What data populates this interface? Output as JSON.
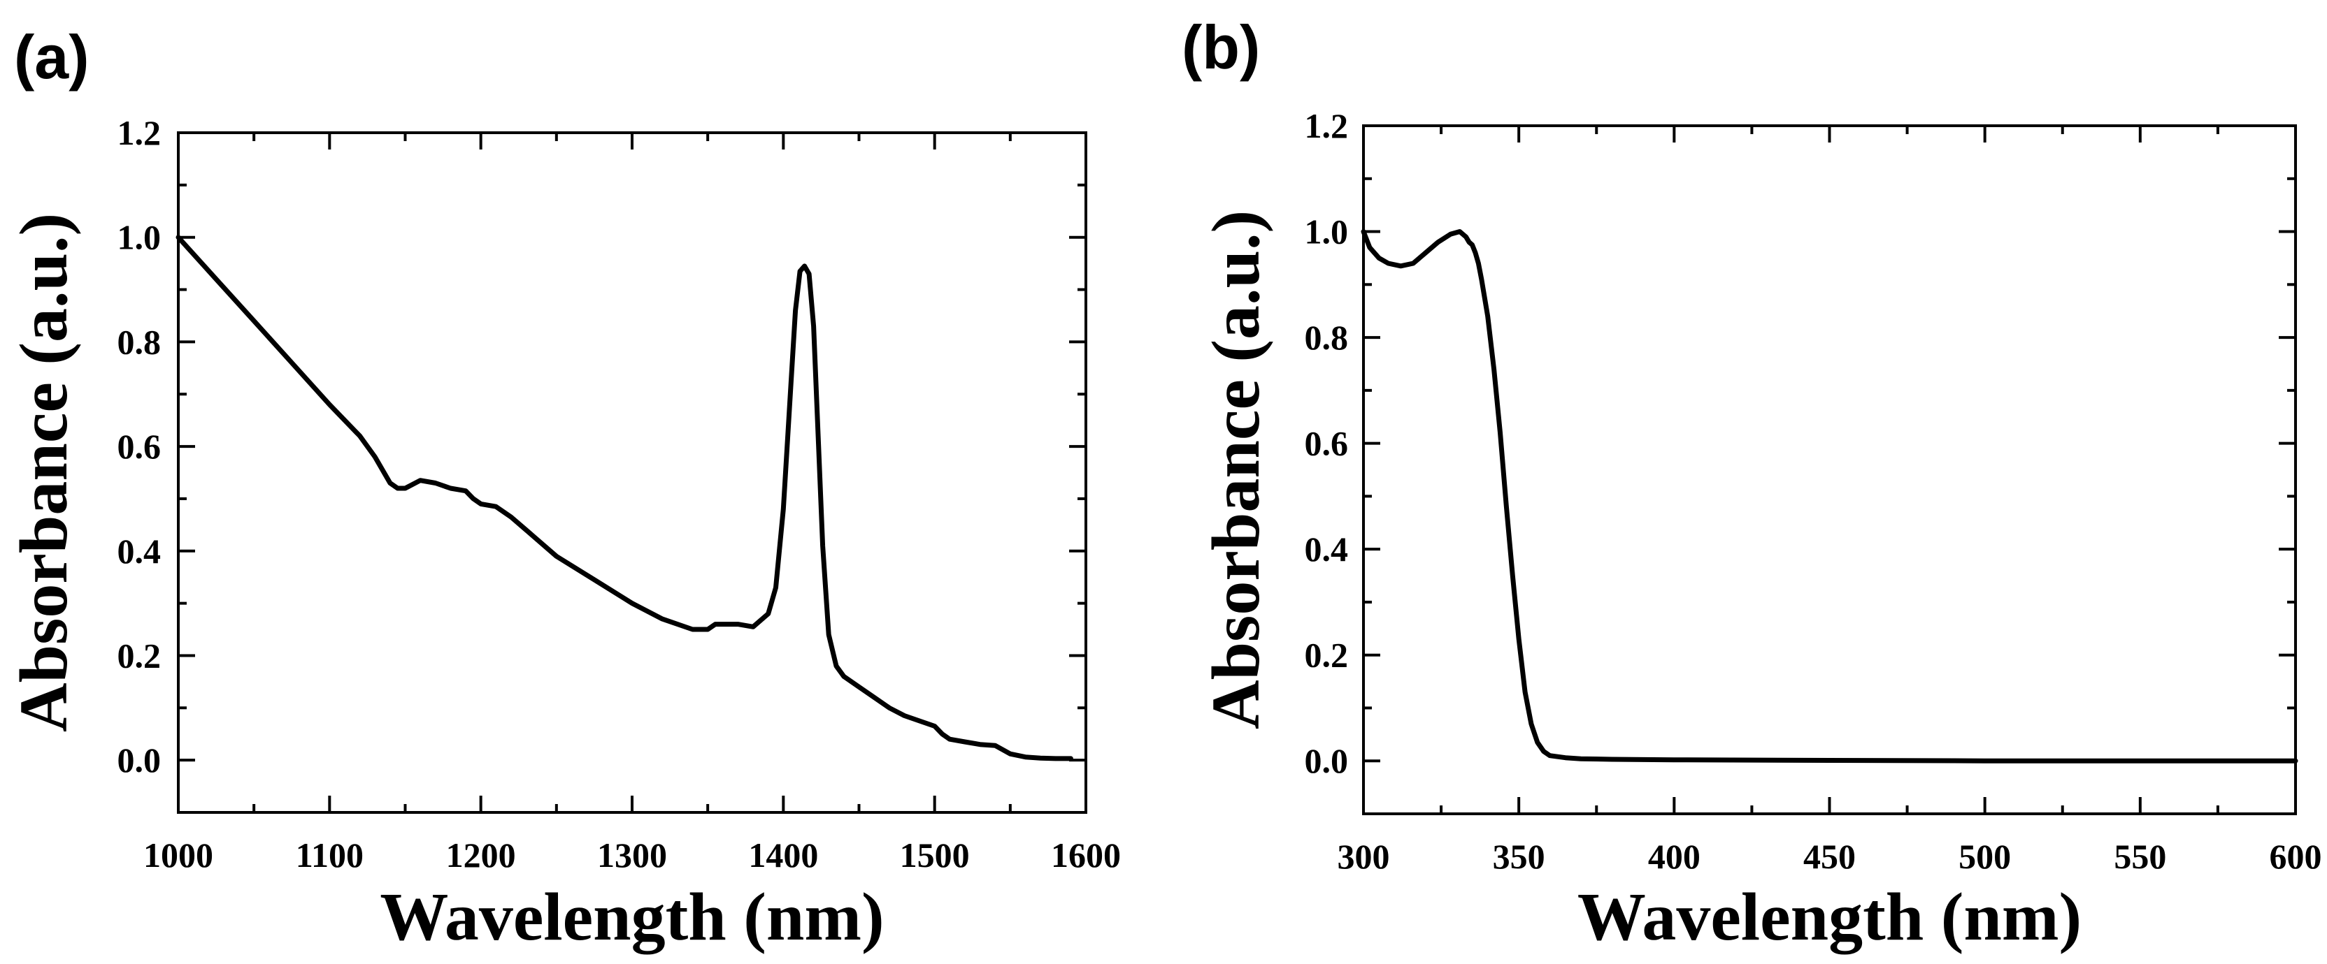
{
  "chart_data": [
    {
      "panel_label": "(a)",
      "type": "line",
      "title": "",
      "xlabel": "Wavelength (nm)",
      "ylabel": "Absorbance (a.u.)",
      "xlim": [
        1000,
        1600
      ],
      "ylim": [
        -0.1,
        1.2
      ],
      "xticks": [
        1000,
        1100,
        1200,
        1300,
        1400,
        1500,
        1600
      ],
      "xtick_labels": [
        "1000",
        "1100",
        "1200",
        "1300",
        "1400",
        "1500",
        "1600"
      ],
      "yticks": [
        0.0,
        0.2,
        0.4,
        0.6,
        0.8,
        1.0,
        1.2
      ],
      "ytick_labels": [
        "0.0",
        "0.2",
        "0.4",
        "0.6",
        "0.8",
        "1.0",
        "1.2"
      ],
      "grid": false,
      "series": [
        {
          "name": "absorbance",
          "x": [
            1000,
            1025,
            1050,
            1075,
            1100,
            1120,
            1130,
            1140,
            1145,
            1150,
            1160,
            1170,
            1180,
            1190,
            1195,
            1200,
            1210,
            1220,
            1230,
            1250,
            1275,
            1300,
            1320,
            1340,
            1350,
            1355,
            1360,
            1370,
            1380,
            1390,
            1395,
            1400,
            1405,
            1408,
            1411,
            1414,
            1417,
            1420,
            1423,
            1426,
            1430,
            1435,
            1440,
            1450,
            1460,
            1470,
            1480,
            1490,
            1500,
            1505,
            1510,
            1520,
            1530,
            1540,
            1545,
            1550,
            1560,
            1570,
            1580,
            1590
          ],
          "y": [
            1.0,
            0.92,
            0.84,
            0.76,
            0.68,
            0.62,
            0.58,
            0.53,
            0.52,
            0.52,
            0.535,
            0.53,
            0.52,
            0.515,
            0.5,
            0.49,
            0.485,
            0.465,
            0.44,
            0.39,
            0.345,
            0.3,
            0.27,
            0.25,
            0.25,
            0.26,
            0.26,
            0.26,
            0.255,
            0.28,
            0.33,
            0.48,
            0.72,
            0.86,
            0.935,
            0.945,
            0.93,
            0.83,
            0.62,
            0.41,
            0.24,
            0.18,
            0.16,
            0.14,
            0.12,
            0.1,
            0.085,
            0.075,
            0.065,
            0.05,
            0.04,
            0.035,
            0.03,
            0.028,
            0.02,
            0.012,
            0.006,
            0.004,
            0.003,
            0.003
          ]
        }
      ]
    },
    {
      "panel_label": "(b)",
      "type": "line",
      "title": "",
      "xlabel": "Wavelength (nm)",
      "ylabel": "Absorbance (a.u.)",
      "xlim": [
        300,
        600
      ],
      "ylim": [
        -0.1,
        1.2
      ],
      "xticks": [
        300,
        350,
        400,
        450,
        500,
        550,
        600
      ],
      "xtick_labels": [
        "300",
        "350",
        "400",
        "450",
        "500",
        "550",
        "600"
      ],
      "yticks": [
        0.0,
        0.2,
        0.4,
        0.6,
        0.8,
        1.0,
        1.2
      ],
      "ytick_labels": [
        "0.0",
        "0.2",
        "0.4",
        "0.6",
        "0.8",
        "1.0",
        "1.2"
      ],
      "grid": false,
      "series": [
        {
          "name": "absorbance",
          "x": [
            300,
            302,
            305,
            308,
            312,
            316,
            320,
            324,
            328,
            331,
            333,
            334,
            335,
            336,
            337,
            338,
            340,
            342,
            344,
            346,
            348,
            350,
            352,
            354,
            356,
            358,
            360,
            365,
            370,
            380,
            400,
            450,
            500,
            550,
            600
          ],
          "y": [
            1.0,
            0.97,
            0.95,
            0.94,
            0.935,
            0.94,
            0.96,
            0.98,
            0.995,
            1.0,
            0.99,
            0.98,
            0.975,
            0.96,
            0.94,
            0.91,
            0.84,
            0.74,
            0.62,
            0.48,
            0.35,
            0.23,
            0.13,
            0.07,
            0.035,
            0.018,
            0.01,
            0.006,
            0.004,
            0.003,
            0.002,
            0.001,
            0.0,
            0.0,
            0.0
          ]
        }
      ]
    }
  ]
}
